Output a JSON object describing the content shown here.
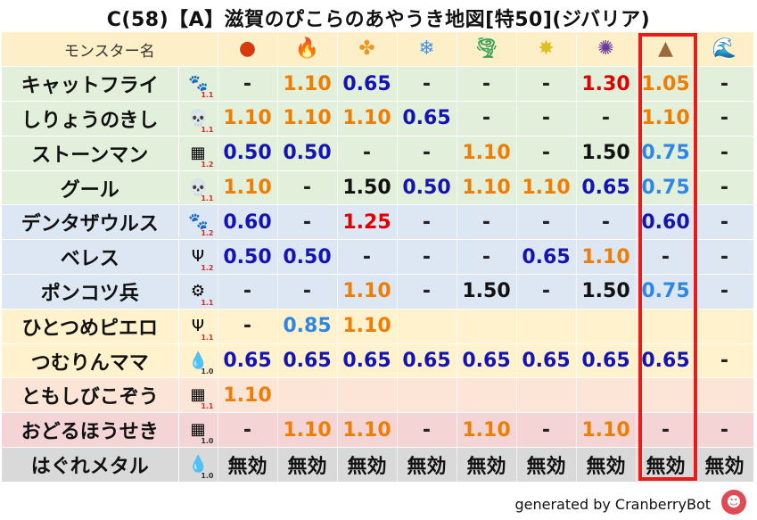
{
  "title": "C(58)【A】滋賀のぴこらのあやうき地図[特50](ジバリア)",
  "header_name": "モンスター名",
  "attributes": [
    {
      "name": "fire-ball-icon",
      "glyph": "●",
      "color": "#d83a10"
    },
    {
      "name": "flame-icon",
      "glyph": "🔥",
      "color": "#e5531e"
    },
    {
      "name": "explosion-icon",
      "glyph": "✤",
      "color": "#e89a20"
    },
    {
      "name": "ice-crystal-icon",
      "glyph": "❄",
      "color": "#4a8fe0"
    },
    {
      "name": "tornado-icon",
      "glyph": "🌪",
      "color": "#3aa05a"
    },
    {
      "name": "lightning-star-icon",
      "glyph": "✸",
      "color": "#e0c020"
    },
    {
      "name": "dark-swirl-icon",
      "glyph": "✺",
      "color": "#6a3aa0"
    },
    {
      "name": "rock-mountain-icon",
      "glyph": "▲",
      "color": "#9a6a3a"
    },
    {
      "name": "water-wave-icon",
      "glyph": "🌊",
      "color": "#2a6ad0"
    }
  ],
  "colors": {
    "green_row": "#e2efda",
    "blue_row": "#dde6f3",
    "yellow_row": "#fff2cc",
    "orange_row": "#fce4d6",
    "pink_row": "#f4d4d4",
    "gray_row": "#d9d9d9",
    "v_dash": "#222222",
    "v_165": "#e00000",
    "v_130": "#e00000",
    "v_125": "#e00000",
    "v_110": "#f07d00",
    "v_105": "#f07d00",
    "v_085": "#2e86e8",
    "v_075": "#2e86e8",
    "v_065": "#1414b4",
    "v_060": "#1414b4",
    "v_050": "#1414b4",
    "v_null": "#111111"
  },
  "rows": [
    {
      "name": "キャットフライ",
      "icon": "paw-icon",
      "glyph": "🐾",
      "level": "1.1",
      "level_color": "#d03030",
      "bg": "green_row",
      "values": [
        "-",
        "1.10",
        "0.65",
        "-",
        "-",
        "-",
        "1.30",
        "1.05",
        "-"
      ]
    },
    {
      "name": "しりょうのきし",
      "icon": "skull-icon",
      "glyph": "💀",
      "level": "1.1",
      "level_color": "#d03030",
      "bg": "green_row",
      "values": [
        "1.10",
        "1.10",
        "1.10",
        "0.65",
        "-",
        "-",
        "-",
        "1.10",
        "-"
      ]
    },
    {
      "name": "ストーンマン",
      "icon": "brick-icon",
      "glyph": "▦",
      "level": "1.2",
      "level_color": "#d03030",
      "bg": "green_row",
      "values": [
        "0.50",
        "0.50",
        "-",
        "-",
        "1.10",
        "-",
        "1.50",
        "0.75",
        "-"
      ]
    },
    {
      "name": "グール",
      "icon": "skull-icon",
      "glyph": "💀",
      "level": "1.1",
      "level_color": "#d03030",
      "bg": "green_row",
      "values": [
        "1.10",
        "-",
        "1.50",
        "0.50",
        "1.10",
        "1.10",
        "0.65",
        "0.75",
        "-"
      ]
    },
    {
      "name": "デンタザウルス",
      "icon": "paw-icon",
      "glyph": "🐾",
      "level": "1.2",
      "level_color": "#d03030",
      "bg": "blue_row",
      "values": [
        "0.60",
        "-",
        "1.25",
        "-",
        "-",
        "-",
        "-",
        "0.60",
        "-"
      ]
    },
    {
      "name": "ベレス",
      "icon": "demon-icon",
      "glyph": "Ψ",
      "level": "1.2",
      "level_color": "#d03030",
      "bg": "blue_row",
      "values": [
        "0.50",
        "0.50",
        "-",
        "-",
        "-",
        "0.65",
        "1.10",
        "-",
        "-"
      ]
    },
    {
      "name": "ポンコツ兵",
      "icon": "gear-icon",
      "glyph": "⚙",
      "level": "1.1",
      "level_color": "#d03030",
      "bg": "blue_row",
      "values": [
        "-",
        "-",
        "1.10",
        "-",
        "1.50",
        "-",
        "1.50",
        "0.75",
        "-"
      ]
    },
    {
      "name": "ひとつめピエロ",
      "icon": "demon-icon",
      "glyph": "Ψ",
      "level": "1.1",
      "level_color": "#d03030",
      "bg": "yellow_row",
      "values": [
        "-",
        "0.85",
        "1.10",
        "",
        "",
        "",
        "",
        "",
        ""
      ]
    },
    {
      "name": "つむりんママ",
      "icon": "slime-icon",
      "glyph": "💧",
      "level": "1.0",
      "level_color": "#333333",
      "bg": "yellow_row",
      "values": [
        "0.65",
        "0.65",
        "0.65",
        "0.65",
        "0.65",
        "0.65",
        "0.65",
        "0.65",
        "-"
      ]
    },
    {
      "name": "ともしびこぞう",
      "icon": "brick-icon",
      "glyph": "▦",
      "level": "1.1",
      "level_color": "#d03030",
      "bg": "orange_row",
      "values": [
        "1.10",
        "",
        "",
        "",
        "",
        "",
        "",
        "",
        ""
      ]
    },
    {
      "name": "おどるほうせき",
      "icon": "brick-icon",
      "glyph": "▦",
      "level": "1.0",
      "level_color": "#333333",
      "bg": "pink_row",
      "values": [
        "-",
        "1.10",
        "1.10",
        "-",
        "1.10",
        "-",
        "1.10",
        "-",
        "-"
      ]
    },
    {
      "name": "はぐれメタル",
      "icon": "slime-icon",
      "glyph": "💧",
      "level": "1.0",
      "level_color": "#333333",
      "bg": "gray_row",
      "values": [
        "無効",
        "無効",
        "無効",
        "無効",
        "無効",
        "無効",
        "無効",
        "無効",
        "無効"
      ]
    }
  ],
  "footer": "generated by CranberryBot",
  "bot_glyph": "☻"
}
